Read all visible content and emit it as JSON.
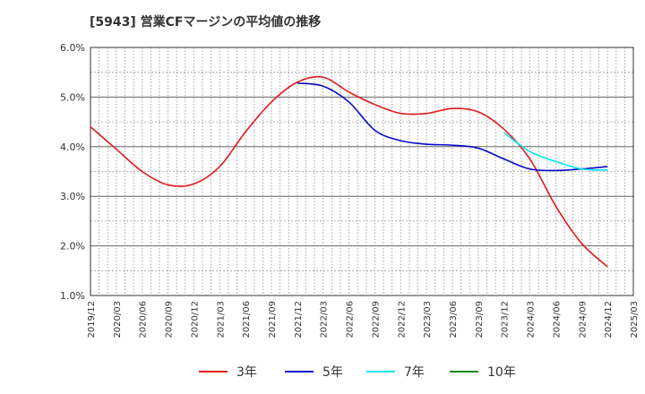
{
  "chart_data": {
    "type": "line",
    "title": "[5943]  営業CFマージンの平均値の推移",
    "xlabel": "",
    "ylabel": "",
    "ylim": [
      1.0,
      6.0
    ],
    "y_ticks": [
      "1.0%",
      "2.0%",
      "3.0%",
      "4.0%",
      "5.0%",
      "6.0%"
    ],
    "x_ticks": [
      "2019/12",
      "2020/03",
      "2020/06",
      "2020/09",
      "2020/12",
      "2021/03",
      "2021/06",
      "2021/09",
      "2021/12",
      "2022/03",
      "2022/06",
      "2022/09",
      "2022/12",
      "2023/03",
      "2023/06",
      "2023/09",
      "2023/12",
      "2024/03",
      "2024/06",
      "2024/09",
      "2024/12",
      "2025/03"
    ],
    "grid": true,
    "legend_position": "bottom",
    "series": [
      {
        "name": "3年",
        "color": "#e31a1c",
        "x": [
          "2019/12",
          "2020/03",
          "2020/06",
          "2020/09",
          "2020/12",
          "2021/03",
          "2021/06",
          "2021/09",
          "2021/12",
          "2022/03",
          "2022/06",
          "2022/09",
          "2022/12",
          "2023/03",
          "2023/06",
          "2023/09",
          "2023/12",
          "2024/03",
          "2024/06",
          "2024/09",
          "2024/12"
        ],
        "values": [
          4.4,
          3.95,
          3.5,
          3.23,
          3.25,
          3.6,
          4.3,
          4.9,
          5.3,
          5.4,
          5.1,
          4.85,
          4.67,
          4.67,
          4.77,
          4.7,
          4.35,
          3.75,
          2.8,
          2.05,
          1.58
        ]
      },
      {
        "name": "5年",
        "color": "#0a0ac8",
        "x": [
          "2021/12",
          "2022/03",
          "2022/06",
          "2022/09",
          "2022/12",
          "2023/03",
          "2023/06",
          "2023/09",
          "2023/12",
          "2024/03",
          "2024/06",
          "2024/09",
          "2024/12"
        ],
        "values": [
          5.28,
          5.22,
          4.9,
          4.33,
          4.12,
          4.05,
          4.03,
          3.97,
          3.75,
          3.55,
          3.52,
          3.55,
          3.6
        ]
      },
      {
        "name": "7年",
        "color": "#00e5f0",
        "x": [
          "2023/12",
          "2024/03",
          "2024/06",
          "2024/09",
          "2024/12"
        ],
        "values": [
          4.28,
          3.9,
          3.7,
          3.55,
          3.53
        ]
      },
      {
        "name": "10年",
        "color": "#1a8a1a",
        "x": [],
        "values": []
      }
    ]
  }
}
